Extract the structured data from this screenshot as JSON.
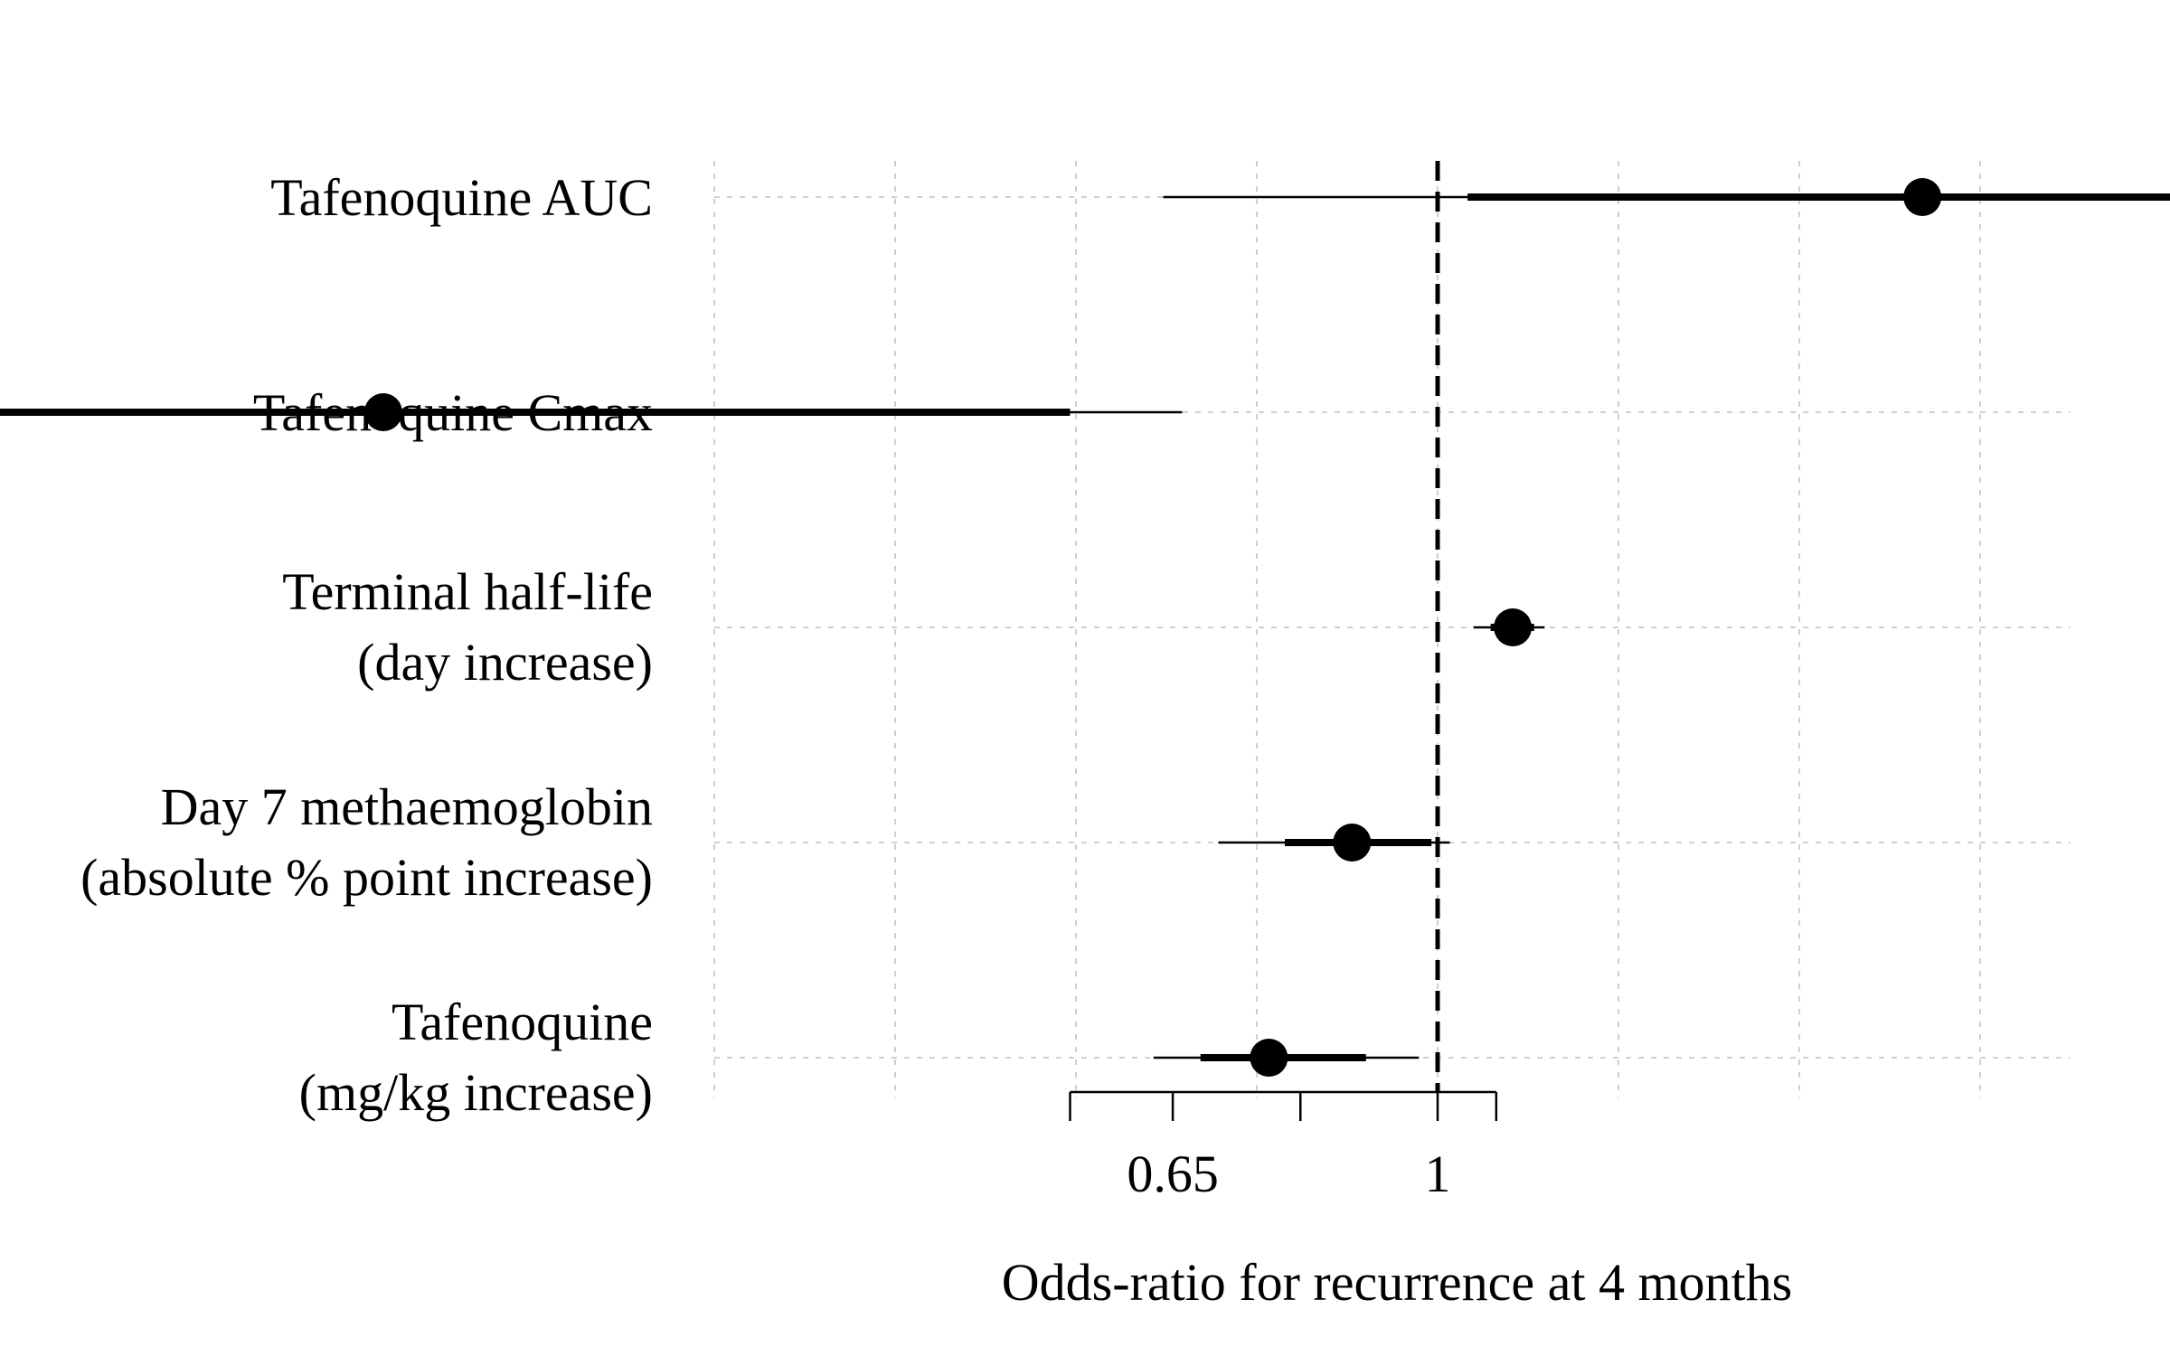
{
  "chart_data": {
    "type": "forest",
    "xlabel": "Odds-ratio for recurrence at 4 months",
    "x_scale": "log",
    "reference_line": 1,
    "axis_ticks": [
      0.55,
      0.65,
      0.8,
      1,
      1.1
    ],
    "axis_tick_labels": [
      {
        "value": 0.65,
        "label": "0.65"
      },
      {
        "value": 1,
        "label": "1"
      }
    ],
    "grid": true,
    "rows": [
      {
        "label_lines": [
          "Tafenoquine AUC"
        ],
        "estimate": 2.2,
        "ci50": [
          1.05,
          3.8
        ],
        "ci95": [
          0.64,
          5.0
        ]
      },
      {
        "label_lines": [
          "Tafenoquine Cmax"
        ],
        "estimate": 0.18,
        "ci50": [
          0.095,
          0.55
        ],
        "ci95": [
          0.06,
          0.66
        ]
      },
      {
        "label_lines": [
          "Terminal half-life",
          "(day increase)"
        ],
        "estimate": 1.13,
        "ci50": [
          1.09,
          1.17
        ],
        "ci95": [
          1.06,
          1.19
        ]
      },
      {
        "label_lines": [
          "Day 7 methaemoglobin",
          "(absolute % point increase)"
        ],
        "estimate": 0.87,
        "ci50": [
          0.78,
          0.99
        ],
        "ci95": [
          0.7,
          1.02
        ]
      },
      {
        "label_lines": [
          "Tafenoquine",
          "(mg/kg increase)"
        ],
        "estimate": 0.76,
        "ci50": [
          0.68,
          0.89
        ],
        "ci95": [
          0.63,
          0.97
        ]
      }
    ]
  }
}
